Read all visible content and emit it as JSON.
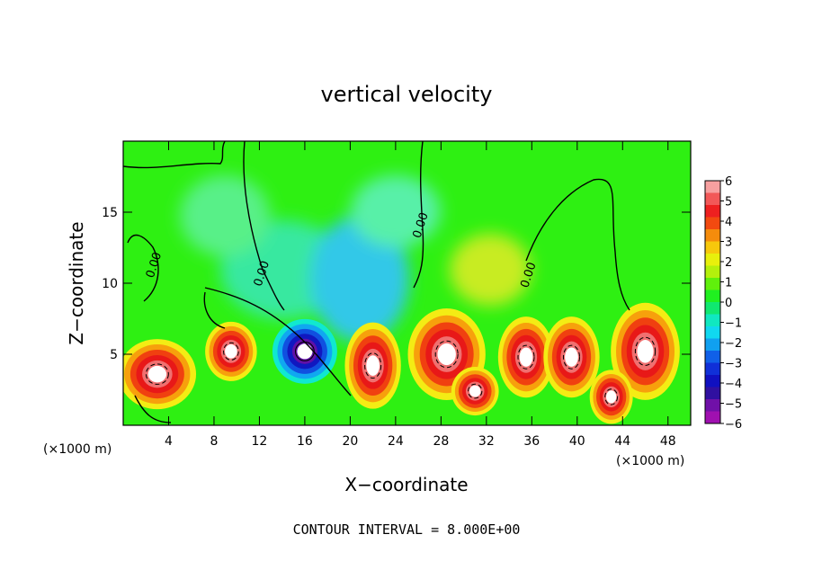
{
  "chart_data": {
    "type": "heatmap",
    "title": "vertical velocity",
    "xlabel": "X−coordinate",
    "ylabel": "Z−coordinate",
    "x_units_left": "(×1000 m)",
    "x_units_right": "(×1000 m)",
    "footer": "CONTOUR INTERVAL = 8.000E+00",
    "xlim": [
      0,
      50
    ],
    "ylim": [
      0,
      20
    ],
    "x_ticks": [
      4,
      8,
      12,
      16,
      20,
      24,
      28,
      32,
      36,
      40,
      44,
      48
    ],
    "y_ticks": [
      5,
      10,
      15
    ],
    "colorbar": {
      "ticks": [
        6,
        5,
        4,
        3,
        2,
        1,
        0,
        -1,
        -2,
        -3,
        -4,
        -5,
        -6
      ],
      "tick_labels": [
        "6",
        "5",
        "4",
        "3",
        "2",
        "1",
        "0",
        "−1",
        "−2",
        "−3",
        "−4",
        "−5",
        "−6"
      ],
      "colors": [
        "#f7a0a0",
        "#f25858",
        "#ee2020",
        "#f24a10",
        "#f58c0c",
        "#f7c80c",
        "#e8f00c",
        "#b4f00c",
        "#60f00c",
        "#20f020",
        "#10e870",
        "#10e8c0",
        "#10d8f0",
        "#10a0f0",
        "#1060e8",
        "#1030d8",
        "#1010c0",
        "#3010a0",
        "#7010a8",
        "#a010b0"
      ]
    },
    "contour_labels": [
      {
        "x": 3.0,
        "y": 11.2,
        "text": "0.00"
      },
      {
        "x": 12.5,
        "y": 10.6,
        "text": "0.00"
      },
      {
        "x": 26.5,
        "y": 14.0,
        "text": "0.00"
      },
      {
        "x": 36.0,
        "y": 10.5,
        "text": "0.00"
      }
    ],
    "features": [
      {
        "x": 3.0,
        "y": 3.6,
        "w": 3.6,
        "h": 2.6,
        "value": 12
      },
      {
        "x": 9.5,
        "y": 5.2,
        "w": 2.4,
        "h": 2.2,
        "value": 10
      },
      {
        "x": 16.0,
        "y": 5.2,
        "w": 3.0,
        "h": 2.4,
        "value": -8
      },
      {
        "x": 22.0,
        "y": 4.2,
        "w": 2.6,
        "h": 3.2,
        "value": 14
      },
      {
        "x": 28.5,
        "y": 5.0,
        "w": 3.6,
        "h": 3.4,
        "value": 15
      },
      {
        "x": 31.0,
        "y": 2.4,
        "w": 2.2,
        "h": 1.8,
        "value": 9
      },
      {
        "x": 35.5,
        "y": 4.8,
        "w": 2.6,
        "h": 3.0,
        "value": 13
      },
      {
        "x": 39.5,
        "y": 4.8,
        "w": 2.6,
        "h": 3.0,
        "value": 13
      },
      {
        "x": 46.0,
        "y": 5.2,
        "w": 3.2,
        "h": 3.6,
        "value": 14
      },
      {
        "x": 43.0,
        "y": 2.0,
        "w": 2.0,
        "h": 2.0,
        "value": 8
      }
    ]
  }
}
